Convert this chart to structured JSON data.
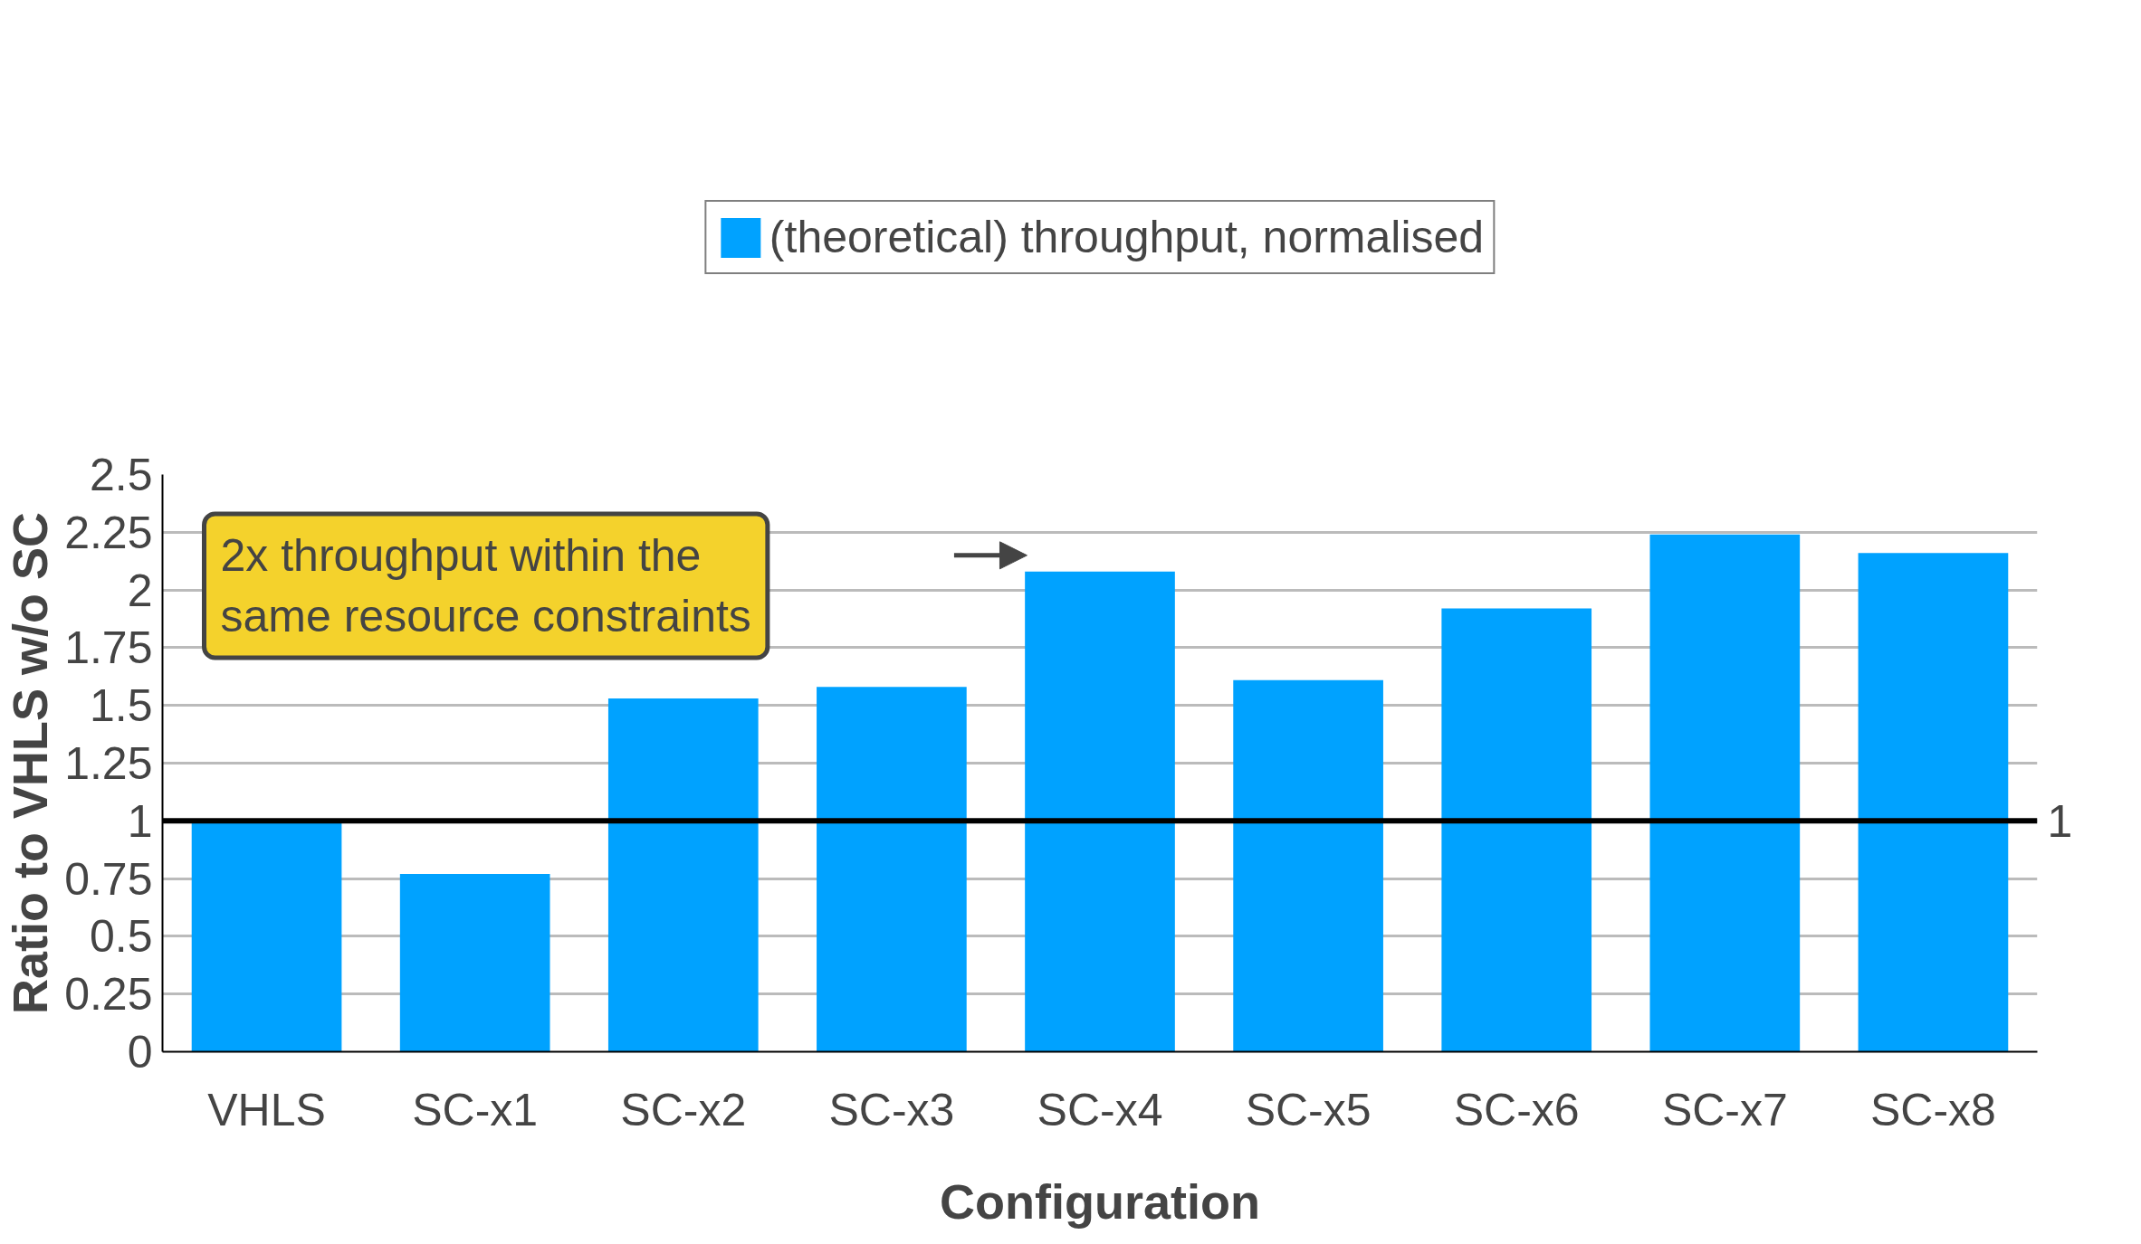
{
  "chart_data": {
    "type": "bar",
    "xlabel": "Configuration",
    "ylabel": "Ratio to VHLS w/o SC",
    "categories": [
      "VHLS",
      "SC-x1",
      "SC-x2",
      "SC-x3",
      "SC-x4",
      "SC-x5",
      "SC-x6",
      "SC-x7",
      "SC-x8"
    ],
    "series": [
      {
        "name": "(theoretical) throughput, normalised",
        "color": "#00a2ff",
        "values": [
          1.0,
          0.77,
          1.53,
          1.58,
          2.08,
          1.61,
          1.92,
          2.24,
          2.16
        ]
      }
    ],
    "ylim": [
      0,
      2.5
    ],
    "yticks": [
      0,
      0.25,
      0.5,
      0.75,
      1,
      1.25,
      1.5,
      1.75,
      2,
      2.25,
      2.5
    ],
    "grid": "y",
    "legend": "top",
    "ref_lines": [
      {
        "axis": "y",
        "value": 1,
        "label": "1",
        "color": "#000000"
      }
    ],
    "annotations": [
      "2x throughput within the\nsame resource constraints"
    ]
  }
}
